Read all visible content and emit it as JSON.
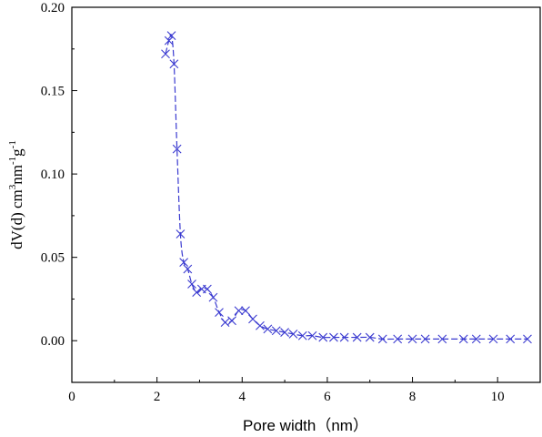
{
  "chart_data": {
    "type": "line",
    "title": "",
    "xlabel": "Pore width（nm）",
    "ylabel_main": "dV(d) cm",
    "ylabel_sup1": "3",
    "ylabel_mid": "nm",
    "ylabel_sup2": "-1",
    "ylabel_g": "g",
    "ylabel_sup3": "-1",
    "xlim": [
      0,
      11
    ],
    "ylim": [
      -0.025,
      0.2
    ],
    "xticks": [
      "0",
      "2",
      "4",
      "6",
      "8",
      "10"
    ],
    "yticks": [
      "0.00",
      "0.05",
      "0.10",
      "0.15",
      "0.20"
    ],
    "grid": false,
    "legend": "none",
    "color": "#3a3ad0",
    "marker": "x",
    "line_style": "dashed",
    "series": [
      {
        "x": [
          2.2,
          2.28,
          2.34,
          2.4,
          2.47,
          2.55,
          2.63,
          2.72,
          2.82,
          2.93,
          3.05,
          3.18,
          3.32,
          3.46,
          3.6,
          3.76,
          3.92,
          4.08,
          4.25,
          4.42,
          4.6,
          4.8,
          5.0,
          5.2,
          5.42,
          5.65,
          5.9,
          6.15,
          6.4,
          6.7,
          7.0,
          7.3,
          7.65,
          8.0,
          8.3,
          8.7,
          9.2,
          9.5,
          9.9,
          10.3,
          10.7
        ],
        "y": [
          0.172,
          0.18,
          0.183,
          0.166,
          0.115,
          0.064,
          0.047,
          0.043,
          0.034,
          0.029,
          0.031,
          0.031,
          0.026,
          0.017,
          0.011,
          0.012,
          0.018,
          0.018,
          0.013,
          0.009,
          0.007,
          0.006,
          0.005,
          0.004,
          0.003,
          0.003,
          0.002,
          0.002,
          0.002,
          0.002,
          0.002,
          0.001,
          0.001,
          0.001,
          0.001,
          0.001,
          0.001,
          0.001,
          0.001,
          0.001,
          0.001
        ]
      }
    ]
  }
}
